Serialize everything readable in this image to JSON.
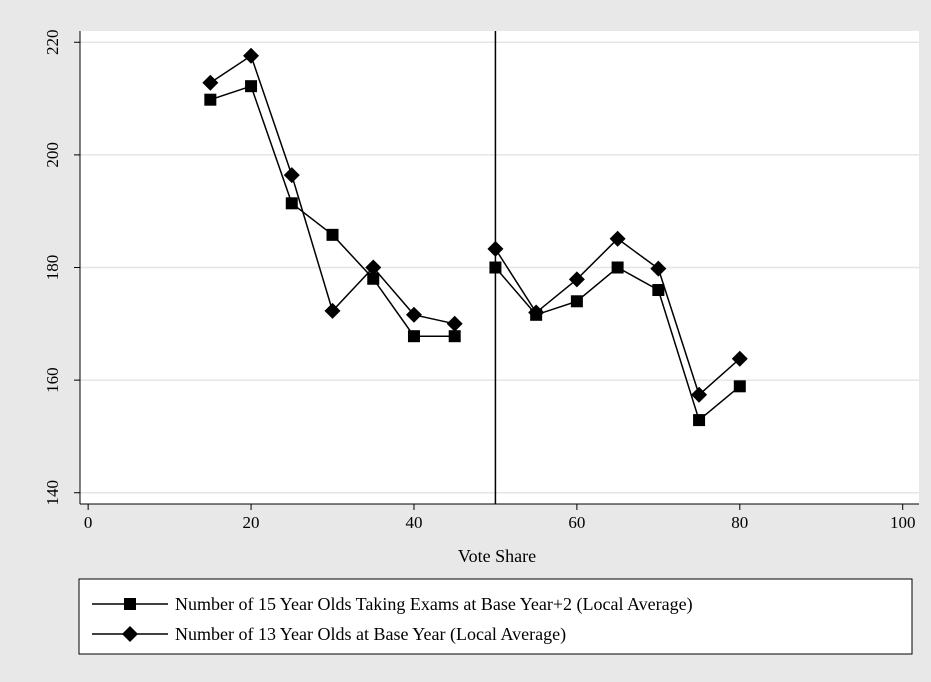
{
  "chart_data": {
    "type": "line",
    "title": "",
    "xlabel": "Vote Share",
    "ylabel": "",
    "xlim": [
      -1,
      102
    ],
    "ylim": [
      138,
      222
    ],
    "xticks": [
      0,
      20,
      40,
      60,
      80,
      100
    ],
    "yticks": [
      140,
      160,
      180,
      200,
      220
    ],
    "grid": "horizontal",
    "legend_position": "bottom",
    "cutoff_line_x": 50,
    "series": [
      {
        "name": "Number of 15 Year Olds Taking Exams at Base Year+2 (Local Average)",
        "marker": "square",
        "segments": [
          [
            [
              15,
              209.8
            ],
            [
              20,
              212.2
            ],
            [
              25,
              191.4
            ],
            [
              30,
              185.8
            ],
            [
              35,
              178
            ],
            [
              40,
              167.8
            ],
            [
              45,
              167.8
            ]
          ],
          [
            [
              50,
              180
            ],
            [
              55,
              171.6
            ],
            [
              60,
              174
            ],
            [
              65,
              180
            ],
            [
              70,
              176
            ],
            [
              75,
              152.9
            ],
            [
              80,
              158.9
            ]
          ]
        ]
      },
      {
        "name": "Number of 13 Year Olds at Base Year (Local Average)",
        "marker": "diamond",
        "segments": [
          [
            [
              15,
              212.8
            ],
            [
              20,
              217.6
            ],
            [
              25,
              196.4
            ],
            [
              30,
              172.3
            ],
            [
              35,
              180
            ],
            [
              40,
              171.6
            ],
            [
              45,
              170
            ]
          ],
          [
            [
              50,
              183.3
            ],
            [
              55,
              172
            ],
            [
              60,
              177.9
            ],
            [
              65,
              185.1
            ],
            [
              70,
              179.8
            ],
            [
              75,
              157.4
            ],
            [
              80,
              163.8
            ]
          ]
        ]
      }
    ]
  },
  "colors": {
    "background": "#e8e8e8",
    "plot": "#ffffff",
    "grid": "#e5e5e5",
    "ink": "#000000"
  }
}
